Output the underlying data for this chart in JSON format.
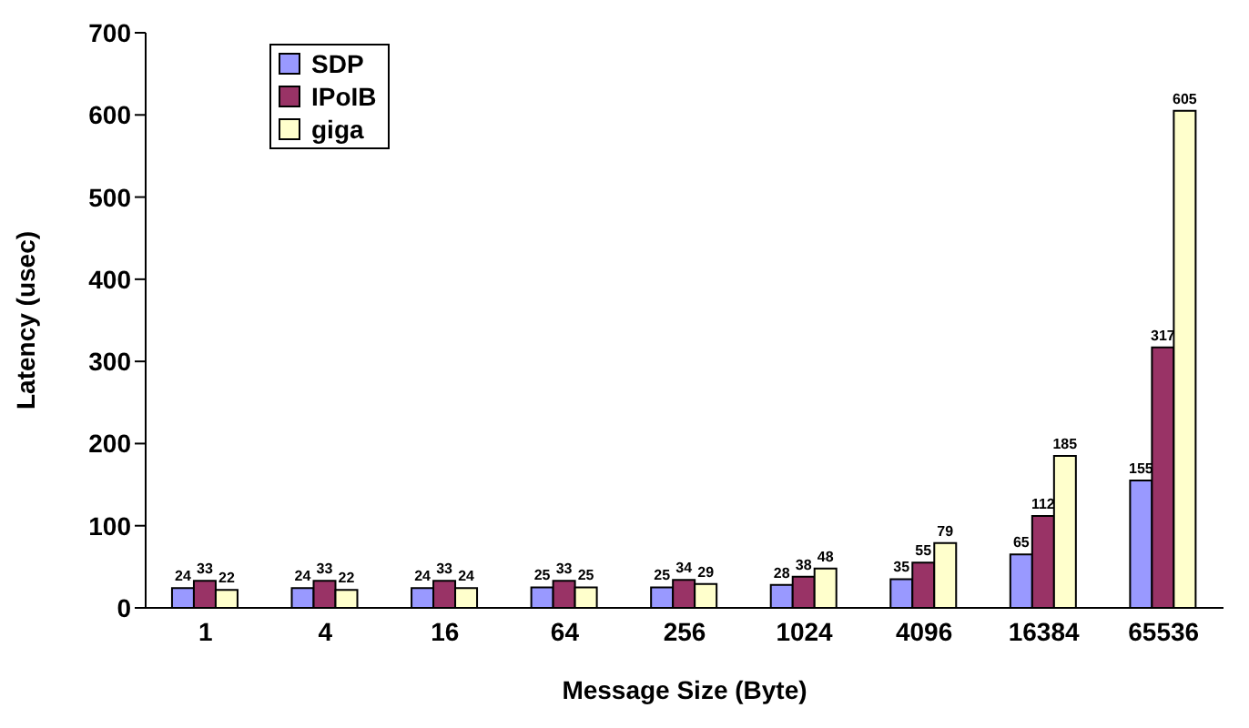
{
  "chart_data": {
    "type": "bar",
    "xlabel": "Message Size (Byte)",
    "ylabel": "Latency (usec)",
    "categories": [
      "1",
      "4",
      "16",
      "64",
      "256",
      "1024",
      "4096",
      "16384",
      "65536"
    ],
    "series": [
      {
        "name": "SDP",
        "color": "#9999ff",
        "values": [
          24,
          24,
          24,
          25,
          25,
          28,
          35,
          65,
          155
        ]
      },
      {
        "name": "IPoIB",
        "color": "#993366",
        "values": [
          33,
          33,
          33,
          33,
          34,
          38,
          55,
          112,
          317
        ]
      },
      {
        "name": "giga",
        "color": "#ffffcc",
        "values": [
          22,
          22,
          24,
          25,
          29,
          48,
          79,
          185,
          605
        ]
      }
    ],
    "ylim": [
      0,
      700
    ],
    "yticks": [
      0,
      100,
      200,
      300,
      400,
      500,
      600,
      700
    ],
    "grid": false,
    "legend": "top left",
    "data_labels": true
  }
}
